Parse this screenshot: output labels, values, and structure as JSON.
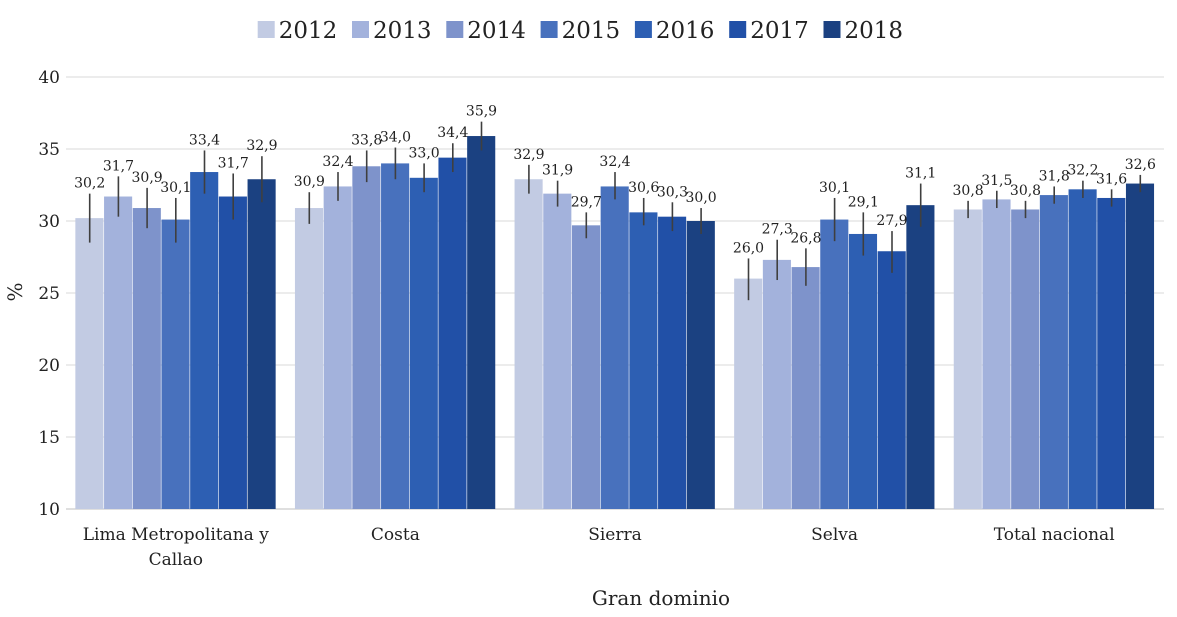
{
  "chart_data": {
    "type": "bar",
    "title": "",
    "xlabel": "Gran dominio",
    "ylabel": "%",
    "ylim": [
      10,
      40
    ],
    "yticks": [
      10,
      15,
      20,
      25,
      30,
      35,
      40
    ],
    "ytick_labels": [
      "10",
      "15",
      "20",
      "25",
      "30",
      "35",
      "40"
    ],
    "grid": true,
    "legend_position": "top",
    "categories": [
      [
        "Lima Metropolitana y",
        "Callao"
      ],
      [
        "Costa"
      ],
      [
        "Sierra"
      ],
      [
        "Selva"
      ],
      [
        "Total nacional"
      ]
    ],
    "series": [
      {
        "name": "2012",
        "color": "#c2cbe3",
        "values": [
          30.2,
          30.9,
          32.9,
          26.0,
          30.8
        ],
        "labels": [
          "30,2",
          "30,9",
          "32,9",
          "26,0",
          "30,8"
        ],
        "err_low": [
          28.5,
          29.8,
          31.9,
          24.5,
          30.2
        ],
        "err_high": [
          31.9,
          32.0,
          33.9,
          27.4,
          31.4
        ]
      },
      {
        "name": "2013",
        "color": "#a3b2dc",
        "values": [
          31.7,
          32.4,
          31.9,
          27.3,
          31.5
        ],
        "labels": [
          "31,7",
          "32,4",
          "31,9",
          "27,3",
          "31,5"
        ],
        "err_low": [
          30.3,
          31.4,
          31.0,
          25.9,
          30.9
        ],
        "err_high": [
          33.1,
          33.4,
          32.8,
          28.7,
          32.1
        ]
      },
      {
        "name": "2014",
        "color": "#7e93cb",
        "values": [
          30.9,
          33.8,
          29.7,
          26.8,
          30.8
        ],
        "labels": [
          "30,9",
          "33,8",
          "29,7",
          "26,8",
          "30,8"
        ],
        "err_low": [
          29.5,
          32.7,
          28.8,
          25.5,
          30.2
        ],
        "err_high": [
          32.3,
          34.9,
          30.6,
          28.1,
          31.4
        ]
      },
      {
        "name": "2015",
        "color": "#4871bd",
        "values": [
          30.1,
          34.0,
          32.4,
          30.1,
          31.8
        ],
        "labels": [
          "30,1",
          "34,0",
          "32,4",
          "30,1",
          "31,8"
        ],
        "err_low": [
          28.5,
          32.9,
          31.5,
          28.6,
          31.2
        ],
        "err_high": [
          31.6,
          35.1,
          33.4,
          31.6,
          32.4
        ]
      },
      {
        "name": "2016",
        "color": "#2d5fb3",
        "values": [
          33.4,
          33.0,
          30.6,
          29.1,
          32.2
        ],
        "labels": [
          "33,4",
          "33,0",
          "30,6",
          "29,1",
          "32,2"
        ],
        "err_low": [
          31.9,
          32.0,
          29.7,
          27.6,
          31.6
        ],
        "err_high": [
          34.9,
          34.0,
          31.6,
          30.6,
          32.8
        ]
      },
      {
        "name": "2017",
        "color": "#2150a7",
        "values": [
          31.7,
          34.4,
          30.3,
          27.9,
          31.6
        ],
        "labels": [
          "31,7",
          "34,4",
          "30,3",
          "27,9",
          "31,6"
        ],
        "err_low": [
          30.1,
          33.4,
          29.3,
          26.4,
          31.0
        ],
        "err_high": [
          33.3,
          35.4,
          31.3,
          29.3,
          32.2
        ]
      },
      {
        "name": "2018",
        "color": "#1b4181",
        "values": [
          32.9,
          35.9,
          30.0,
          31.1,
          32.6
        ],
        "labels": [
          "32,9",
          "35,9",
          "30,0",
          "31,1",
          "32,6"
        ],
        "err_low": [
          31.3,
          34.9,
          29.1,
          29.6,
          32.0
        ],
        "err_high": [
          34.5,
          36.9,
          30.9,
          32.6,
          33.2
        ]
      }
    ]
  }
}
